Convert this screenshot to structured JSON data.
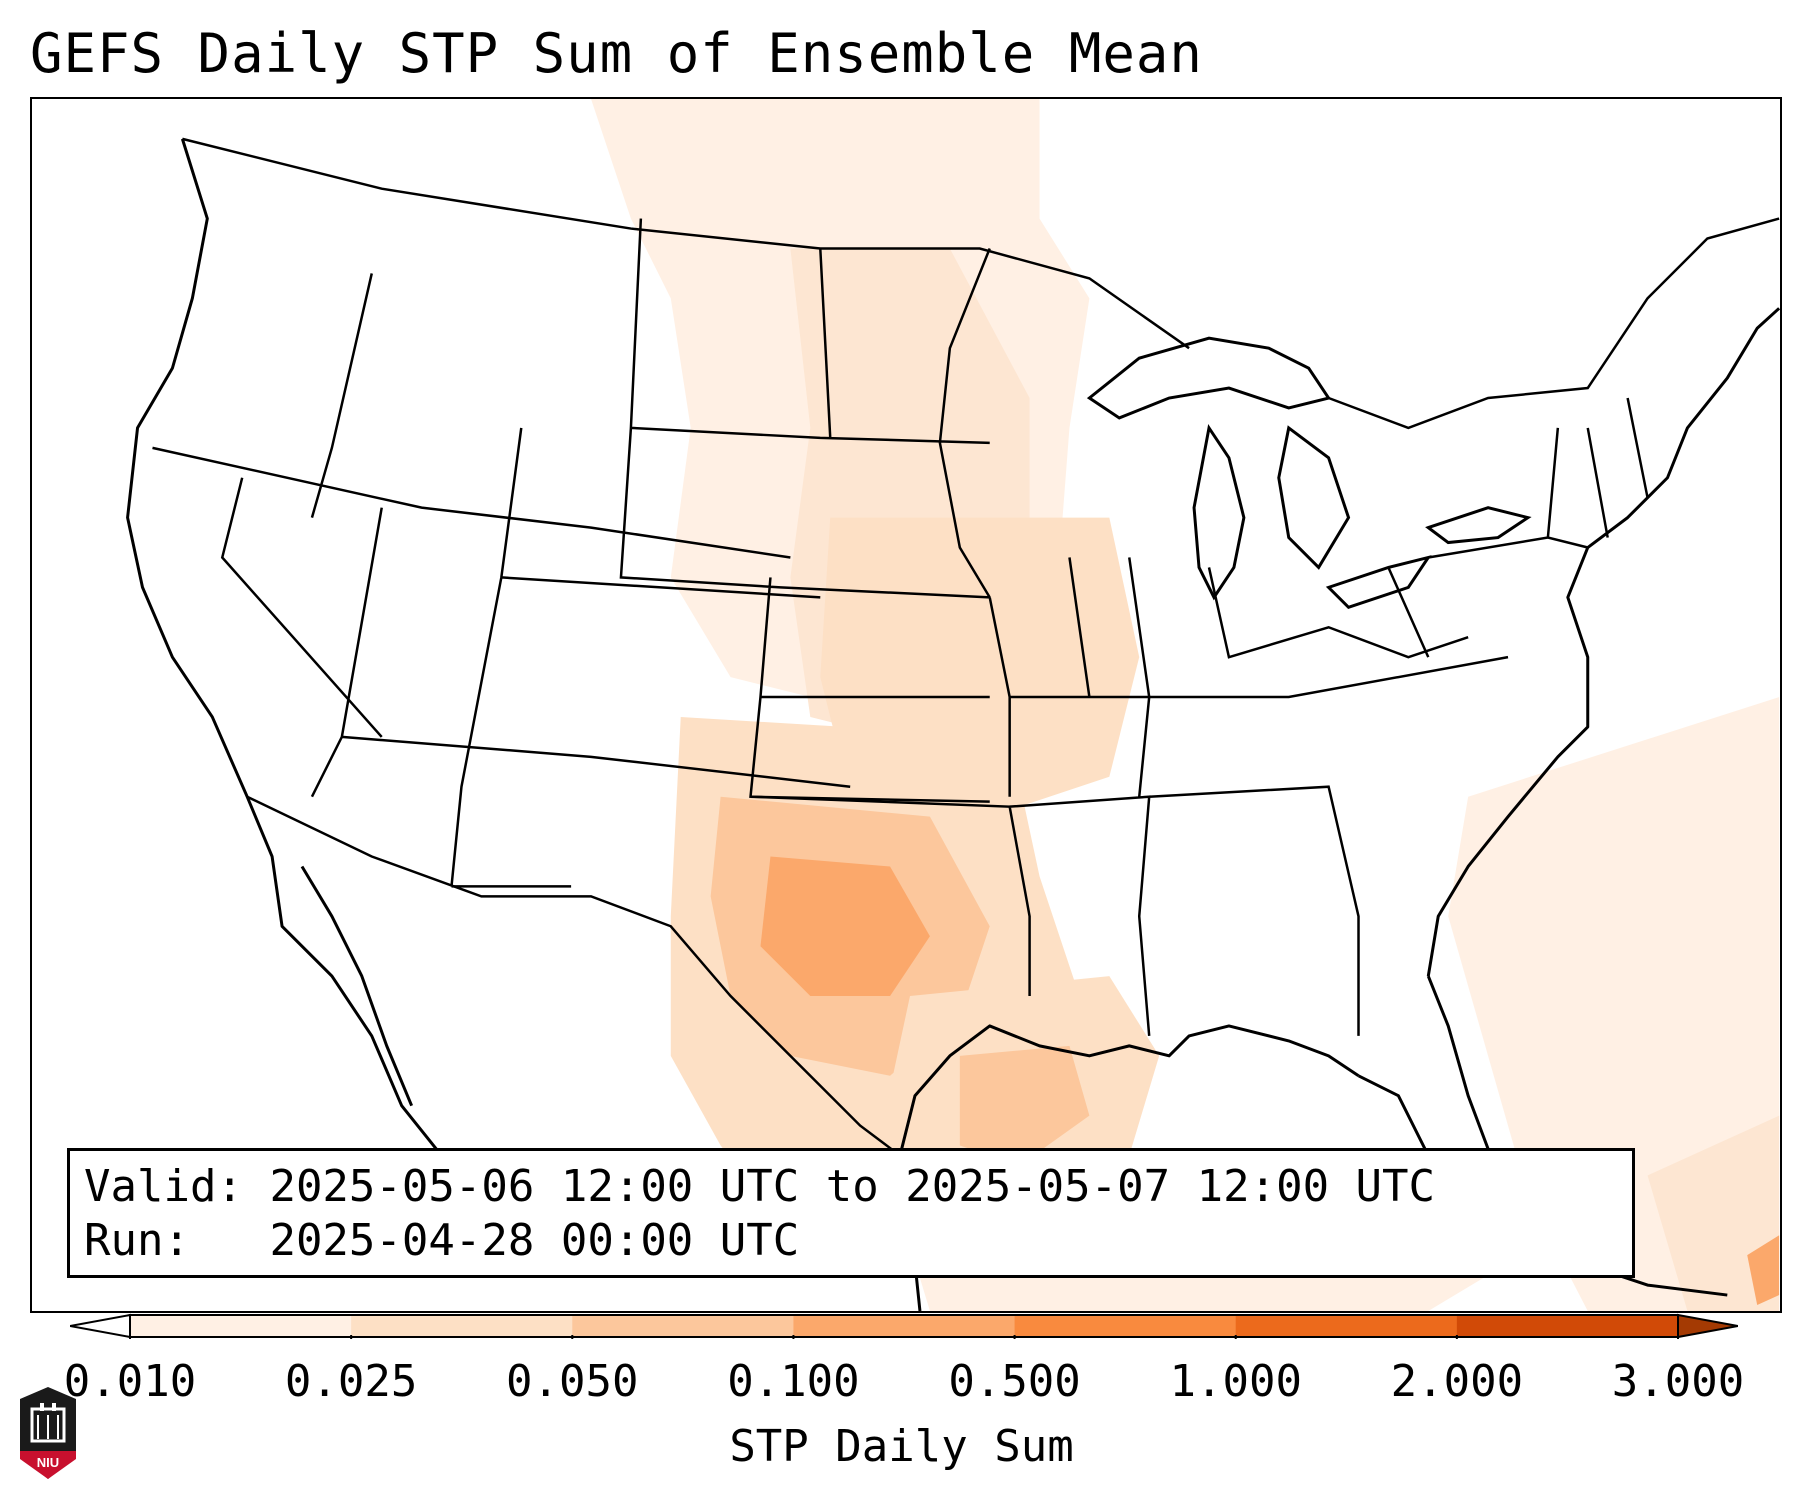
{
  "title": "GEFS Daily STP Sum of Ensemble Mean",
  "validity": {
    "valid_label": "Valid:",
    "valid_range": "2025-05-06 12:00 UTC to 2025-05-07 12:00 UTC",
    "run_label": "Run:",
    "run_time": "2025-04-28 00:00 UTC"
  },
  "colorbar": {
    "label": "STP Daily Sum",
    "ticks": [
      "0.010",
      "0.025",
      "0.050",
      "0.100",
      "0.500",
      "1.000",
      "2.000",
      "3.000"
    ],
    "colors": [
      "#fff0e4",
      "#fde0c5",
      "#fcc79c",
      "#fba86b",
      "#f98a3e",
      "#ec6a1c",
      "#d14a07"
    ],
    "extend_low_color": "#ffffff",
    "extend_high_color": "#a43a03"
  },
  "logo": {
    "text": "NIU",
    "icon": "university-shield-icon",
    "color": "#c8102e"
  },
  "map": {
    "region": "CONUS",
    "field": "STP daily sum",
    "shading_regions": [
      {
        "area": "Northern Plains (ND/SD/MN)",
        "level": "0.010-0.025"
      },
      {
        "area": "Central Plains (NE/KS/IA/MO)",
        "level": "0.025-0.050"
      },
      {
        "area": "Oklahoma / Arkansas",
        "level": "0.025-0.050"
      },
      {
        "area": "Central and South Texas",
        "level": "0.050-0.500"
      },
      {
        "area": "Western Gulf of Mexico",
        "level": "0.050-0.100"
      },
      {
        "area": "Southwest Atlantic / Caribbean",
        "level": "0.010-0.025"
      }
    ]
  }
}
